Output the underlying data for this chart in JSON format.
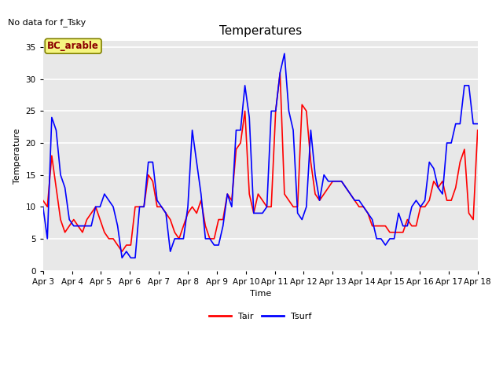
{
  "title": "Temperatures",
  "xlabel": "Time",
  "ylabel": "Temperature",
  "top_left_text": "No data for f_Tsky",
  "annotation_box": "BC_arable",
  "ylim": [
    0,
    36
  ],
  "yticks": [
    0,
    5,
    10,
    15,
    20,
    25,
    30,
    35
  ],
  "xtick_labels": [
    "Apr 3",
    "Apr 4",
    "Apr 5",
    "Apr 6",
    "Apr 7",
    "Apr 8",
    "Apr 9",
    "Apr 10",
    "Apr 11",
    "Apr 12",
    "Apr 13",
    "Apr 14",
    "Apr 15",
    "Apr 16",
    "Apr 17",
    "Apr 18"
  ],
  "legend_labels": [
    "Tair",
    "Tsurf"
  ],
  "legend_colors": [
    "red",
    "blue"
  ],
  "line_tair": [
    11,
    10,
    18,
    13,
    8,
    6,
    7,
    8,
    7,
    6,
    8,
    9,
    10,
    8,
    6,
    5,
    5,
    4,
    3,
    4,
    4,
    10,
    10,
    10,
    15,
    14,
    10,
    10,
    9,
    8,
    6,
    5,
    7,
    9,
    10,
    9,
    11,
    7,
    5,
    5,
    8,
    8,
    12,
    11,
    19,
    20,
    25,
    12,
    9,
    12,
    11,
    10,
    10,
    25,
    31,
    12,
    11,
    10,
    10,
    26,
    25,
    17,
    12,
    11,
    12,
    13,
    14,
    14,
    14,
    13,
    12,
    11,
    10,
    10,
    9,
    7,
    7,
    7,
    7,
    6,
    6,
    6,
    6,
    8,
    7,
    7,
    10,
    10,
    11,
    14,
    13,
    14,
    11,
    11,
    13,
    17,
    19,
    9,
    8,
    22
  ],
  "line_tsurf": [
    10,
    5,
    24,
    22,
    15,
    13,
    8,
    7,
    7,
    7,
    7,
    7,
    10,
    10,
    12,
    11,
    10,
    7,
    2,
    3,
    2,
    2,
    10,
    10,
    17,
    17,
    11,
    10,
    9,
    3,
    5,
    5,
    5,
    10,
    22,
    17,
    12,
    5,
    5,
    4,
    4,
    7,
    12,
    10,
    22,
    22,
    29,
    24,
    9,
    9,
    9,
    10,
    25,
    25,
    31,
    34,
    25,
    22,
    9,
    8,
    10,
    22,
    15,
    11,
    15,
    14,
    14,
    14,
    14,
    13,
    12,
    11,
    11,
    10,
    9,
    8,
    5,
    5,
    4,
    5,
    5,
    9,
    7,
    7,
    10,
    11,
    10,
    11,
    17,
    16,
    13,
    12,
    20,
    20,
    23,
    23,
    29,
    29,
    23,
    23
  ],
  "background_color": "#e8e8e8",
  "grid_color": "white",
  "tair_color": "red",
  "tsurf_color": "blue",
  "linewidth": 1.2,
  "figsize": [
    6.4,
    4.8
  ],
  "dpi": 100,
  "title_fontsize": 11,
  "label_fontsize": 8,
  "tick_fontsize": 7.5,
  "annotation_fontsize": 8.5
}
